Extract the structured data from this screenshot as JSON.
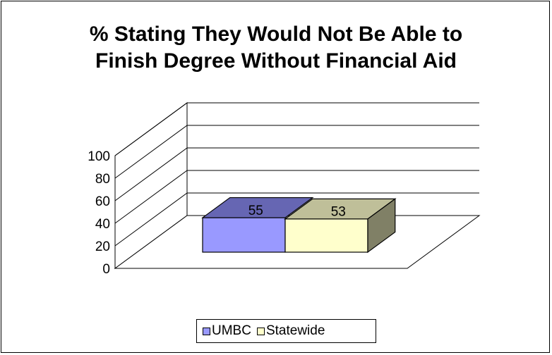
{
  "chart_data": {
    "type": "bar",
    "title_lines": [
      "% Stating They Would Not Be Able to",
      "Finish Degree Without Financial Aid"
    ],
    "categories": [
      ""
    ],
    "series": [
      {
        "name": "UMBC",
        "values": [
          55
        ],
        "color": "#9999ff",
        "top_color": "#6666b3",
        "side_color": "#5252a6"
      },
      {
        "name": "Statewide",
        "values": [
          53
        ],
        "color": "#ffffcc",
        "top_color": "#bfbf99",
        "side_color": "#808066"
      }
    ],
    "yticks": [
      0,
      20,
      40,
      60,
      80,
      100
    ],
    "ylim": [
      0,
      100
    ],
    "grid": true,
    "legend_position": "bottom"
  }
}
